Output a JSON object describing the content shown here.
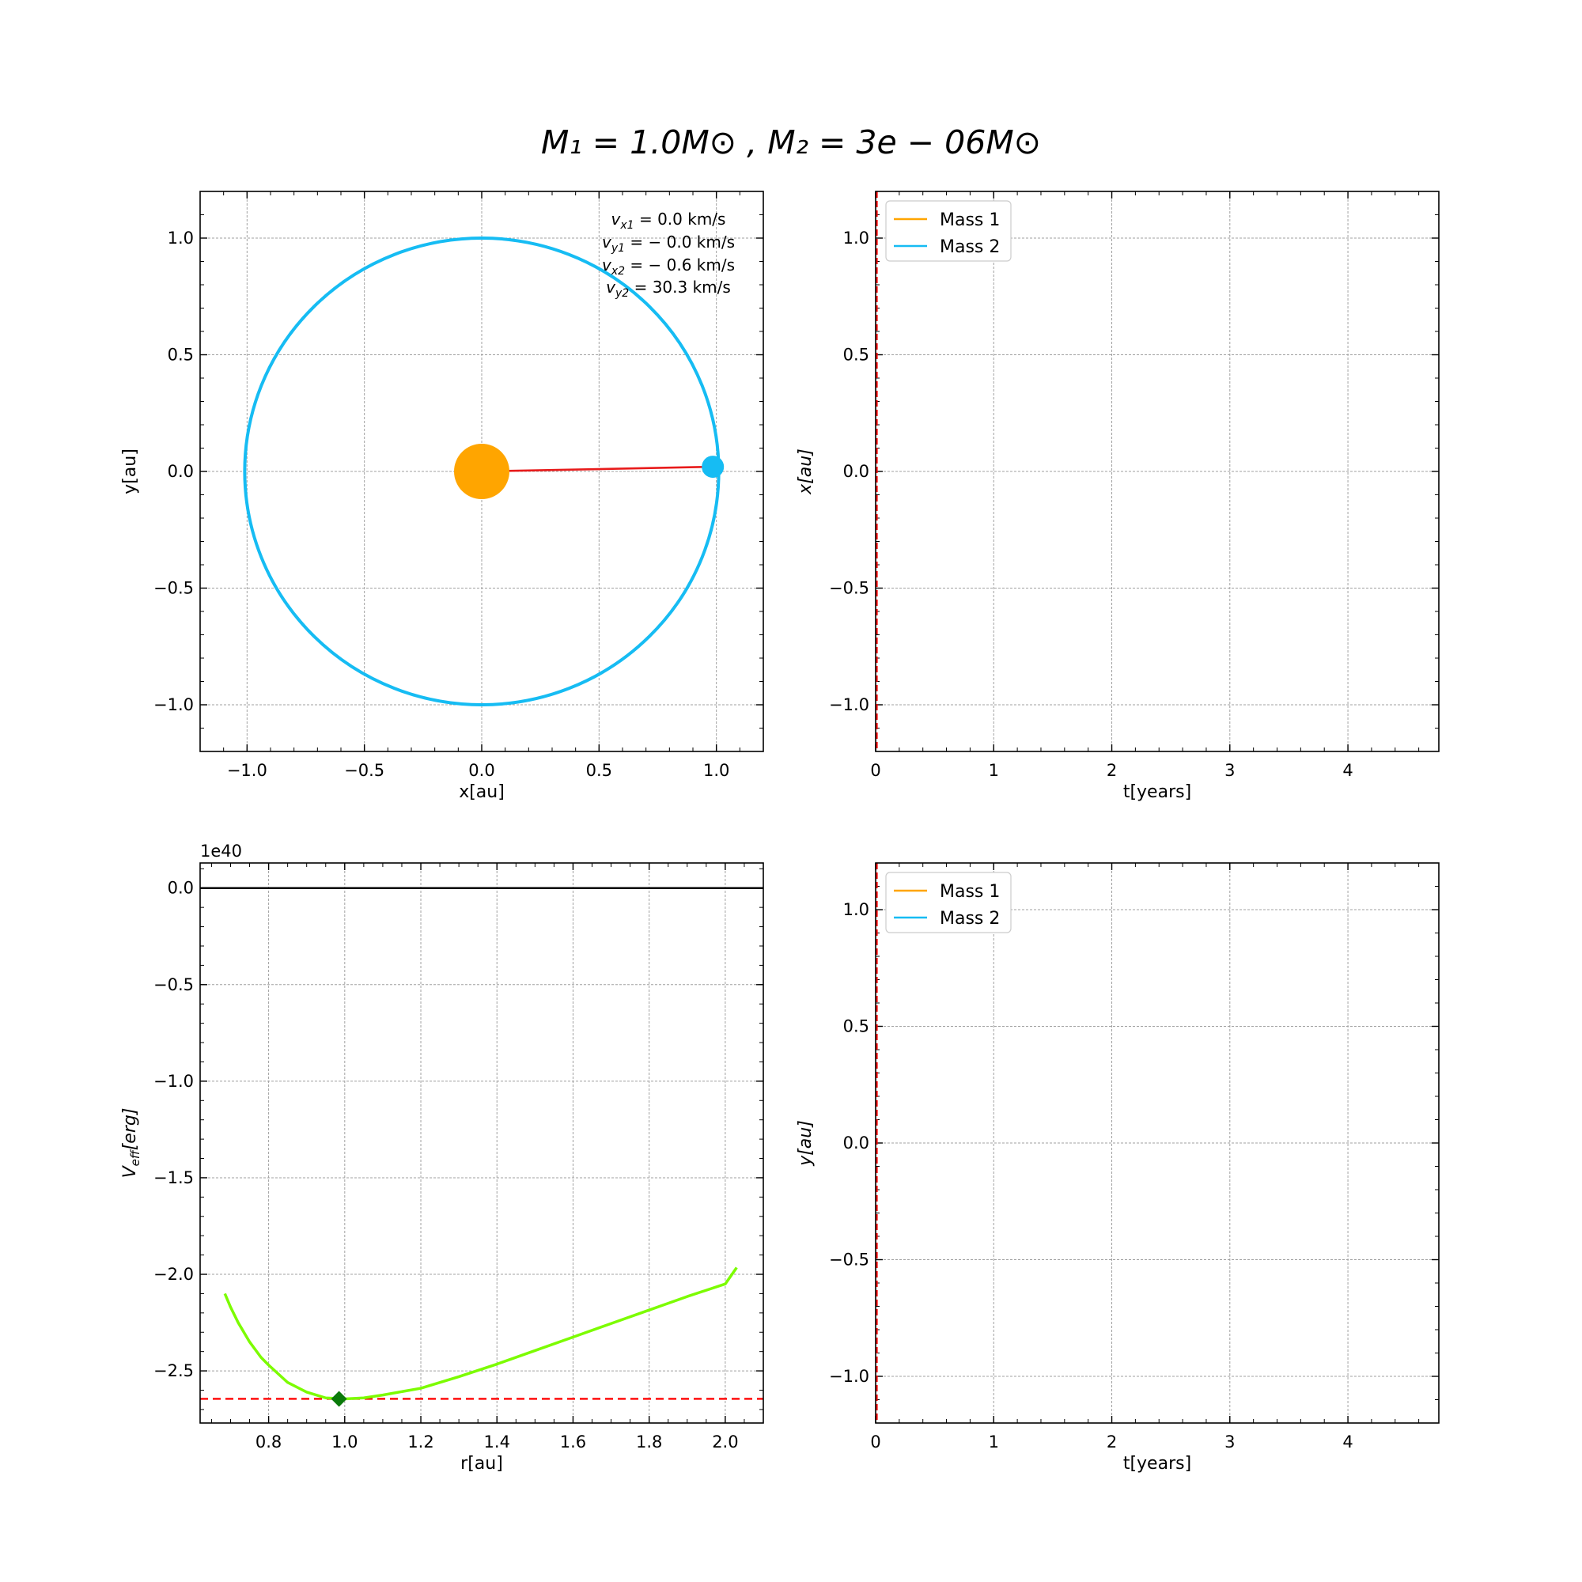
{
  "figure": {
    "title": "M₁ = 1.0M⊙ , M₂ = 3e − 06M⊙"
  },
  "colors": {
    "mass1": "#ffa500",
    "mass2": "#16bcf3",
    "separation_line": "#e81b1b",
    "potential_curve": "#7cfc00",
    "minimum_marker": "#0a7a0a",
    "energy_line": "#ff0000"
  },
  "chart_data": [
    {
      "id": "orbit",
      "type": "line",
      "xlabel": "x[au]",
      "ylabel": "y[au]",
      "xlim": [
        -1.2,
        1.2
      ],
      "ylim": [
        -1.2,
        1.2
      ],
      "xticks": [
        -1.0,
        -0.5,
        0.0,
        0.5,
        1.0
      ],
      "yticks": [
        -1.0,
        -0.5,
        0.0,
        0.5,
        1.0
      ],
      "tick_labels_x": [
        "−1.0",
        "−0.5",
        "0.0",
        "0.5",
        "1.0"
      ],
      "tick_labels_y": [
        "−1.0",
        "−0.5",
        "0.0",
        "0.5",
        "1.0"
      ],
      "grid": true,
      "orbit_path": {
        "shape": "circle",
        "center": [
          0.0,
          0.0
        ],
        "radius_x": 1.01,
        "radius_y": 1.0
      },
      "mass1_position": [
        0.0,
        0.0
      ],
      "mass2_position": [
        0.985,
        0.02
      ],
      "velocity_annotations": [
        {
          "symbol": "v",
          "sub": "x1",
          "rest": " = 0.0 km/s"
        },
        {
          "symbol": "v",
          "sub": "y1",
          "rest": " = − 0.0 km/s"
        },
        {
          "symbol": "v",
          "sub": "x2",
          "rest": " = − 0.6 km/s"
        },
        {
          "symbol": "v",
          "sub": "y2",
          "rest": " = 30.3 km/s"
        }
      ]
    },
    {
      "id": "x_vs_t",
      "type": "line",
      "xlabel": "t[years]",
      "ylabel": "x[au]",
      "xlim": [
        0,
        4.77
      ],
      "ylim": [
        -1.2,
        1.2
      ],
      "xticks": [
        0,
        1,
        2,
        3,
        4
      ],
      "yticks": [
        -1.0,
        -0.5,
        0.0,
        0.5,
        1.0
      ],
      "tick_labels_x": [
        "0",
        "1",
        "2",
        "3",
        "4"
      ],
      "tick_labels_y": [
        "−1.0",
        "−0.5",
        "0.0",
        "0.5",
        "1.0"
      ],
      "grid": true,
      "legend": {
        "position": "top-left",
        "entries": [
          "Mass 1",
          "Mass 2"
        ]
      },
      "series": [
        {
          "name": "Mass 1",
          "x": [],
          "y": []
        },
        {
          "name": "Mass 2",
          "x": [],
          "y": []
        }
      ],
      "current_time_marker": 0.0
    },
    {
      "id": "effective_potential",
      "type": "line",
      "xlabel": "r[au]",
      "ylabel_main": "V",
      "ylabel_sub": "eff",
      "ylabel_rest": "[erg]",
      "offset_label": "1e40",
      "xlim": [
        0.62,
        2.1
      ],
      "ylim": [
        -2.77,
        0.13
      ],
      "xticks": [
        0.8,
        1.0,
        1.2,
        1.4,
        1.6,
        1.8,
        2.0
      ],
      "yticks": [
        0.0,
        -0.5,
        -1.0,
        -1.5,
        -2.0,
        -2.5
      ],
      "tick_labels_x": [
        "0.8",
        "1.0",
        "1.2",
        "1.4",
        "1.6",
        "1.8",
        "2.0"
      ],
      "tick_labels_y": [
        "0.0",
        "−0.5",
        "−1.0",
        "−1.5",
        "−2.0",
        "−2.5"
      ],
      "grid": true,
      "zero_line": 0.0,
      "energy_level": -2.645,
      "curve": {
        "r": [
          0.685,
          0.7,
          0.72,
          0.75,
          0.78,
          0.8,
          0.85,
          0.9,
          0.95,
          1.0,
          1.05,
          1.1,
          1.2,
          1.3,
          1.4,
          1.5,
          1.6,
          1.7,
          1.8,
          1.9,
          2.0,
          2.03
        ],
        "V": [
          -2.1,
          -2.17,
          -2.25,
          -2.35,
          -2.43,
          -2.47,
          -2.56,
          -2.61,
          -2.64,
          -2.645,
          -2.64,
          -2.625,
          -2.59,
          -2.53,
          -2.465,
          -2.395,
          -2.325,
          -2.255,
          -2.185,
          -2.115,
          -2.05,
          -1.965
        ]
      },
      "current_point": [
        0.985,
        -2.645
      ]
    },
    {
      "id": "y_vs_t",
      "type": "line",
      "xlabel": "t[years]",
      "ylabel": "y[au]",
      "xlim": [
        0,
        4.77
      ],
      "ylim": [
        -1.2,
        1.2
      ],
      "xticks": [
        0,
        1,
        2,
        3,
        4
      ],
      "yticks": [
        -1.0,
        -0.5,
        0.0,
        0.5,
        1.0
      ],
      "tick_labels_x": [
        "0",
        "1",
        "2",
        "3",
        "4"
      ],
      "tick_labels_y": [
        "−1.0",
        "−0.5",
        "0.0",
        "0.5",
        "1.0"
      ],
      "grid": true,
      "legend": {
        "position": "top-left",
        "entries": [
          "Mass 1",
          "Mass 2"
        ]
      },
      "series": [
        {
          "name": "Mass 1",
          "x": [],
          "y": []
        },
        {
          "name": "Mass 2",
          "x": [],
          "y": []
        }
      ],
      "current_time_marker": 0.0
    }
  ]
}
